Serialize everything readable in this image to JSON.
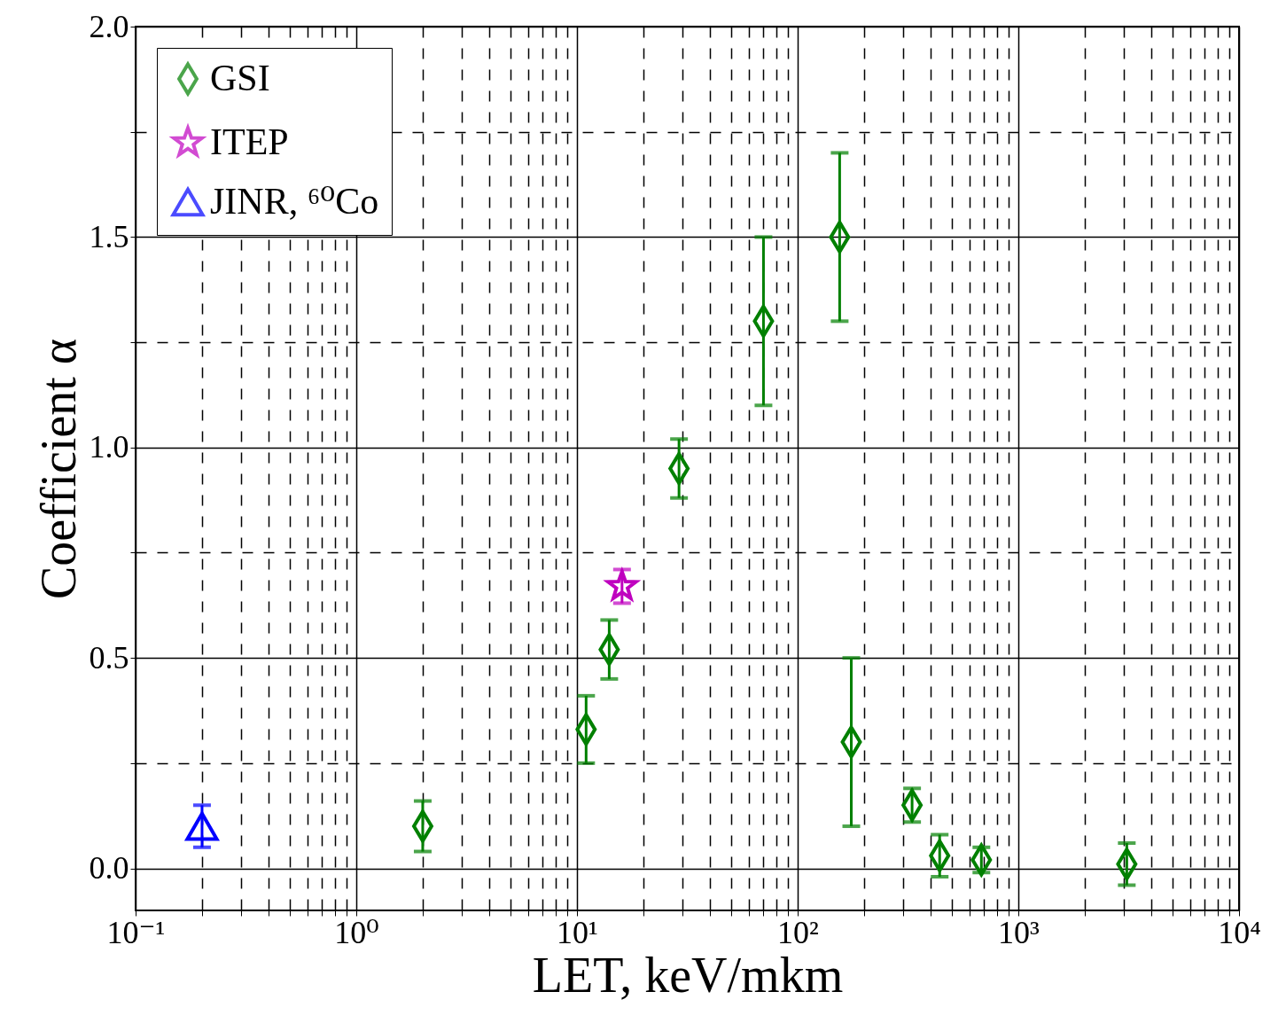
{
  "chart_data": {
    "type": "scatter",
    "xlabel": "LET, keV/mkm",
    "ylabel": "Coefficient α",
    "log": "x",
    "grid": true,
    "legend": "top left",
    "xlim": [
      0.1,
      10000
    ],
    "ylim": [
      -0.1,
      2.0
    ],
    "xticks": [
      {
        "value": 0.1,
        "label": "10⁻¹"
      },
      {
        "value": 0.2,
        "label": null
      },
      {
        "value": 0.3,
        "label": null
      },
      {
        "value": 0.4,
        "label": null
      },
      {
        "value": 0.5,
        "label": null
      },
      {
        "value": 0.6,
        "label": null
      },
      {
        "value": 0.7,
        "label": null
      },
      {
        "value": 0.8,
        "label": null
      },
      {
        "value": 0.9,
        "label": null
      },
      {
        "value": 1,
        "label": "10⁰"
      },
      {
        "value": 2,
        "label": null
      },
      {
        "value": 3,
        "label": null
      },
      {
        "value": 4,
        "label": null
      },
      {
        "value": 5,
        "label": null
      },
      {
        "value": 6,
        "label": null
      },
      {
        "value": 7,
        "label": null
      },
      {
        "value": 8,
        "label": null
      },
      {
        "value": 9,
        "label": null
      },
      {
        "value": 10,
        "label": "10¹"
      },
      {
        "value": 20,
        "label": null
      },
      {
        "value": 30,
        "label": null
      },
      {
        "value": 40,
        "label": null
      },
      {
        "value": 50,
        "label": null
      },
      {
        "value": 60,
        "label": null
      },
      {
        "value": 70,
        "label": null
      },
      {
        "value": 80,
        "label": null
      },
      {
        "value": 90,
        "label": null
      },
      {
        "value": 100,
        "label": "10²"
      },
      {
        "value": 200,
        "label": null
      },
      {
        "value": 300,
        "label": null
      },
      {
        "value": 400,
        "label": null
      },
      {
        "value": 500,
        "label": null
      },
      {
        "value": 600,
        "label": null
      },
      {
        "value": 700,
        "label": null
      },
      {
        "value": 800,
        "label": null
      },
      {
        "value": 900,
        "label": null
      },
      {
        "value": 1000,
        "label": "10³"
      },
      {
        "value": 2000,
        "label": null
      },
      {
        "value": 3000,
        "label": null
      },
      {
        "value": 4000,
        "label": null
      },
      {
        "value": 5000,
        "label": null
      },
      {
        "value": 6000,
        "label": null
      },
      {
        "value": 7000,
        "label": null
      },
      {
        "value": 8000,
        "label": null
      },
      {
        "value": 9000,
        "label": null
      },
      {
        "value": 10000,
        "label": "10⁴"
      }
    ],
    "yticks": [
      {
        "value": 0,
        "label": "0.0"
      },
      {
        "value": 0.25,
        "label": null
      },
      {
        "value": 0.5,
        "label": "0.5"
      },
      {
        "value": 0.75,
        "label": null
      },
      {
        "value": 1,
        "label": "1.0"
      },
      {
        "value": 1.25,
        "label": null
      },
      {
        "value": 1.5,
        "label": "1.5"
      },
      {
        "value": 1.75,
        "label": null
      },
      {
        "value": 2,
        "label": "2.0"
      }
    ],
    "series": [
      {
        "name": "GSI",
        "color": "#008000",
        "marker": "diamond",
        "x": [
          2,
          11,
          14,
          29,
          70,
          155,
          175,
          330,
          440,
          680,
          3100
        ],
        "values": [
          0.1,
          0.33,
          0.52,
          0.95,
          1.3,
          1.5,
          0.3,
          0.15,
          0.03,
          0.02,
          0.01
        ],
        "errors": [
          0.06,
          0.08,
          0.07,
          0.07,
          0.2,
          0.2,
          0.2,
          0.04,
          0.05,
          0.03,
          0.05
        ]
      },
      {
        "name": "ITEP",
        "color": "#bf00bf",
        "marker": "star",
        "x": [
          16
        ],
        "values": [
          0.67
        ],
        "errors": [
          0.04
        ]
      },
      {
        "name": "JINR, ⁶⁰Co",
        "color": "#0000ff",
        "marker": "triangle",
        "x": [
          0.2
        ],
        "values": [
          0.1
        ],
        "errors": [
          0.05
        ]
      }
    ]
  }
}
